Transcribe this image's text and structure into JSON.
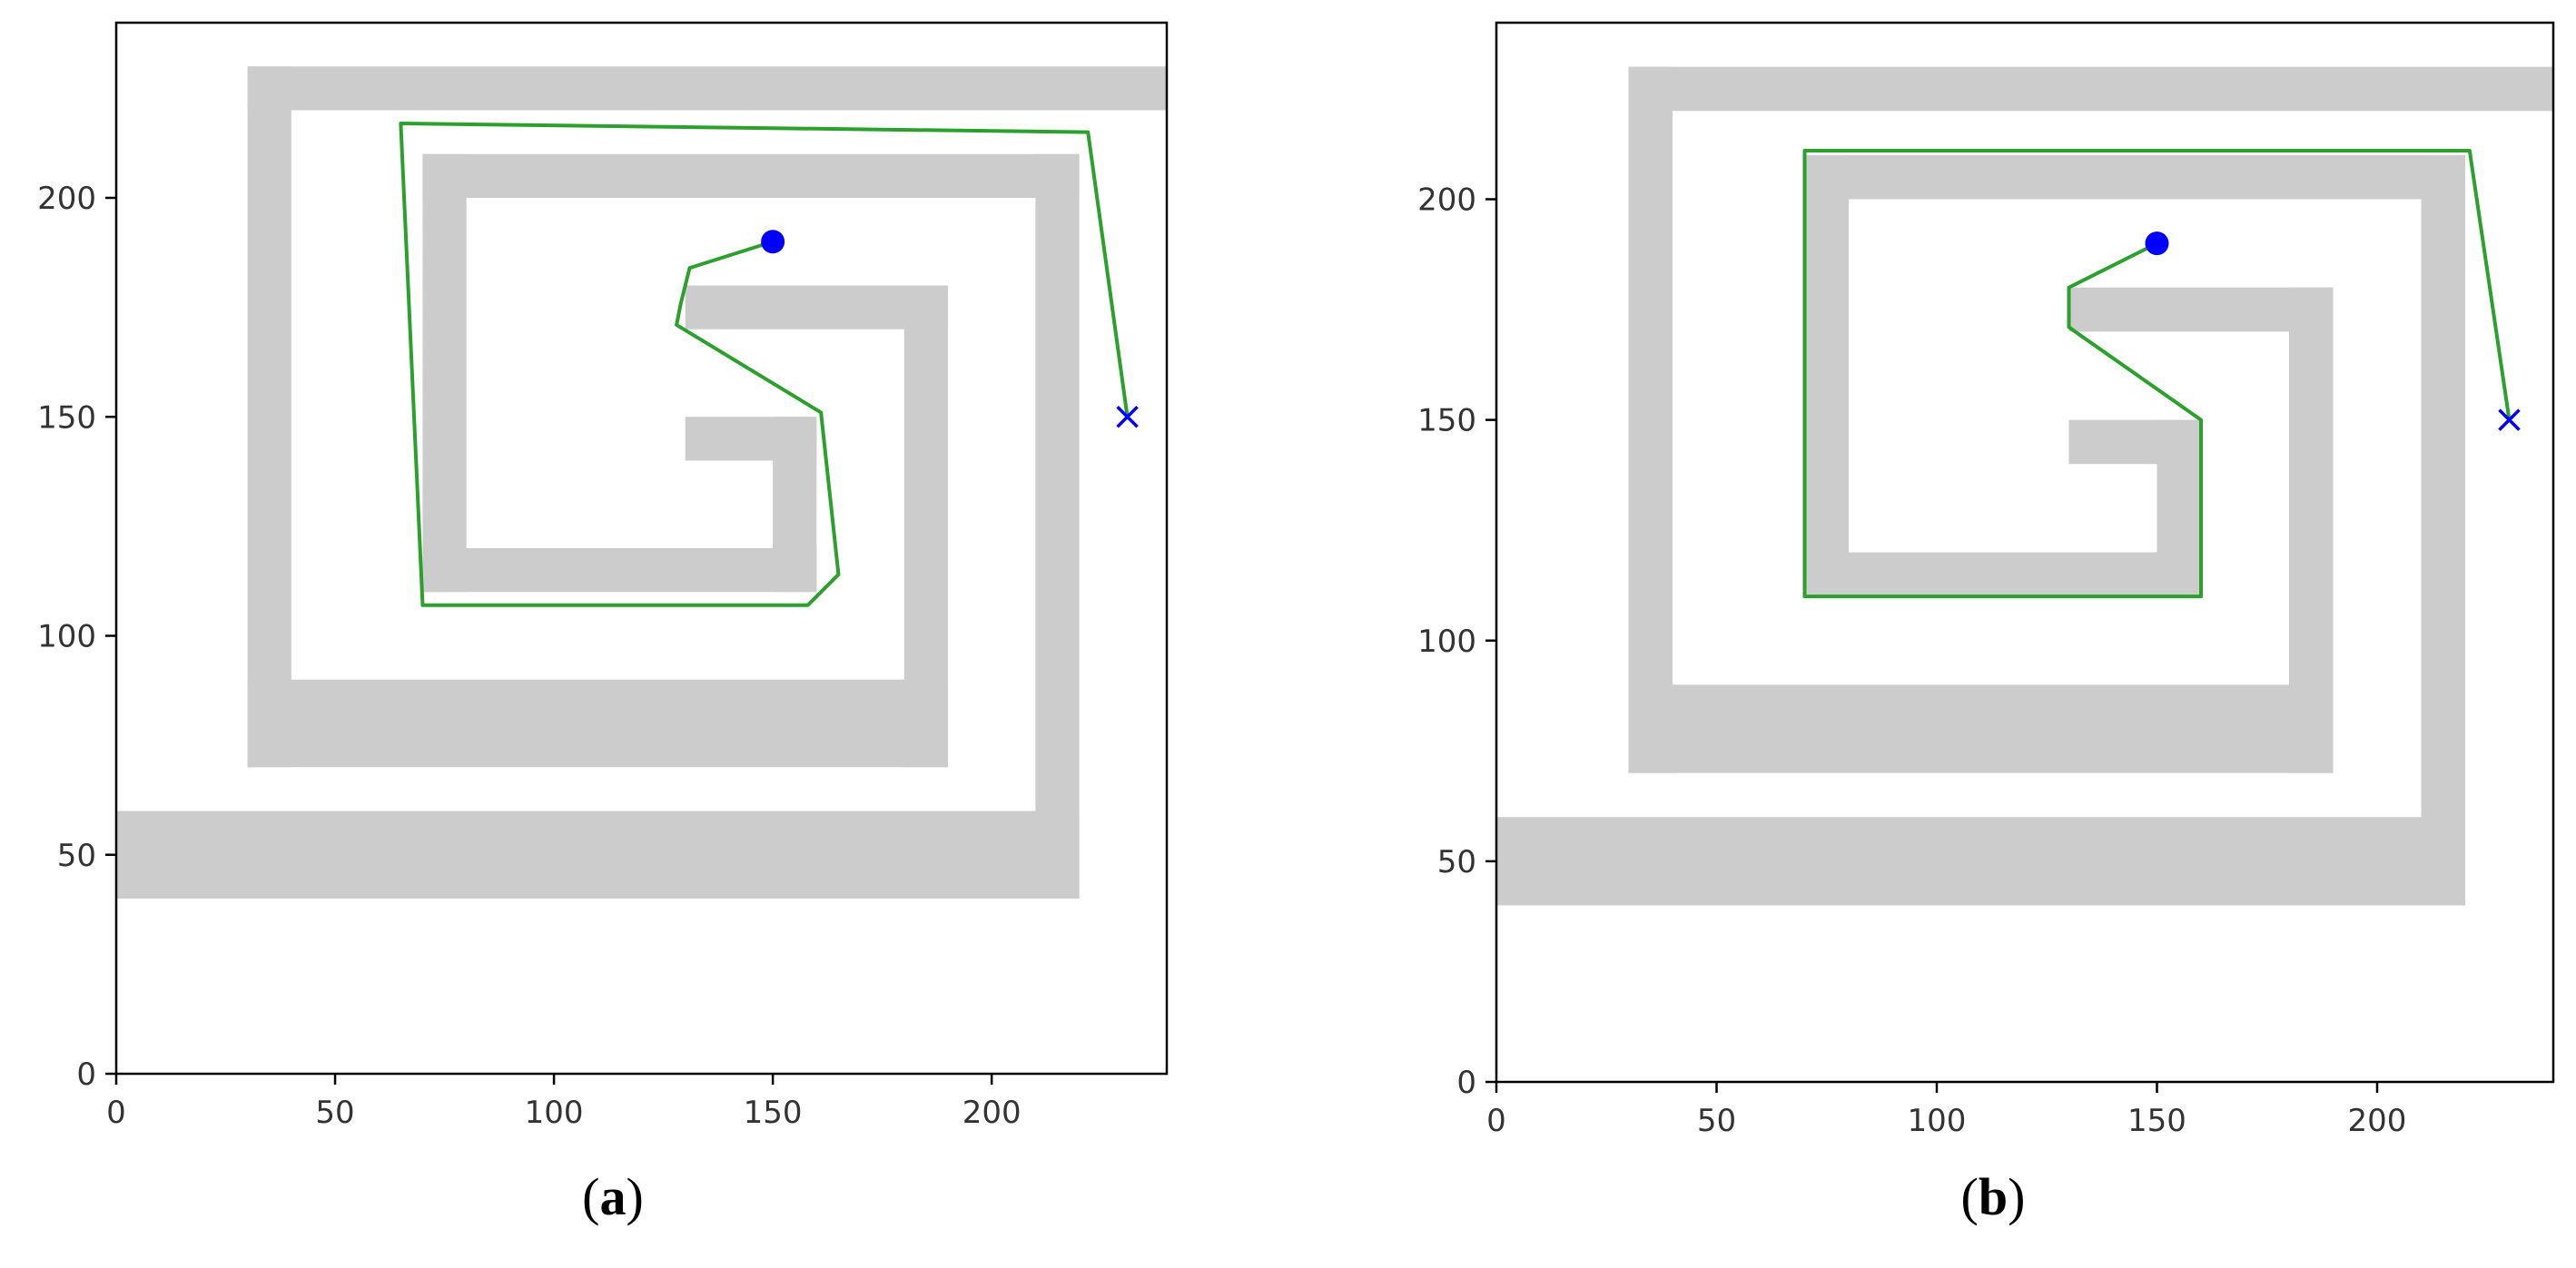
{
  "chart_data": [
    {
      "type": "scatter",
      "subplot_label": "a",
      "xlim": [
        0,
        240
      ],
      "ylim": [
        0,
        240
      ],
      "xticks": [
        0,
        50,
        100,
        150,
        200
      ],
      "yticks": [
        0,
        50,
        100,
        150,
        200
      ],
      "grid": false,
      "obstacle_color": "#cccccc",
      "path_color": "#2ca02c",
      "marker_color": "#0000ff",
      "obstacles": [
        {
          "x0": 0,
          "y0": 40,
          "x1": 220,
          "y1": 60
        },
        {
          "x0": 210,
          "y0": 40,
          "x1": 220,
          "y1": 210
        },
        {
          "x0": 70,
          "y0": 200,
          "x1": 220,
          "y1": 210
        },
        {
          "x0": 70,
          "y0": 110,
          "x1": 80,
          "y1": 210
        },
        {
          "x0": 70,
          "y0": 110,
          "x1": 160,
          "y1": 120
        },
        {
          "x0": 150,
          "y0": 110,
          "x1": 160,
          "y1": 150
        },
        {
          "x0": 130,
          "y0": 140,
          "x1": 160,
          "y1": 150
        },
        {
          "x0": 30,
          "y0": 70,
          "x1": 190,
          "y1": 90
        },
        {
          "x0": 30,
          "y0": 70,
          "x1": 40,
          "y1": 230
        },
        {
          "x0": 30,
          "y0": 220,
          "x1": 240,
          "y1": 230
        },
        {
          "x0": 180,
          "y0": 70,
          "x1": 190,
          "y1": 180
        },
        {
          "x0": 130,
          "y0": 170,
          "x1": 190,
          "y1": 180
        }
      ],
      "path": [
        [
          150,
          190
        ],
        [
          131,
          184
        ],
        [
          129,
          176
        ],
        [
          128,
          171
        ],
        [
          161,
          151
        ],
        [
          165,
          114
        ],
        [
          158,
          107
        ],
        [
          70,
          107
        ],
        [
          65,
          217
        ],
        [
          222,
          215
        ],
        [
          231,
          150
        ]
      ],
      "start": [
        150,
        190
      ],
      "goal": [
        231,
        150
      ]
    },
    {
      "type": "scatter",
      "subplot_label": "b",
      "xlim": [
        0,
        240
      ],
      "ylim": [
        0,
        240
      ],
      "xticks": [
        0,
        50,
        100,
        150,
        200
      ],
      "yticks": [
        0,
        50,
        100,
        150,
        200
      ],
      "grid": false,
      "obstacle_color": "#cccccc",
      "path_color": "#2ca02c",
      "marker_color": "#0000ff",
      "obstacles": [
        {
          "x0": 0,
          "y0": 40,
          "x1": 220,
          "y1": 60
        },
        {
          "x0": 210,
          "y0": 40,
          "x1": 220,
          "y1": 210
        },
        {
          "x0": 70,
          "y0": 200,
          "x1": 220,
          "y1": 210
        },
        {
          "x0": 70,
          "y0": 110,
          "x1": 80,
          "y1": 210
        },
        {
          "x0": 70,
          "y0": 110,
          "x1": 160,
          "y1": 120
        },
        {
          "x0": 150,
          "y0": 110,
          "x1": 160,
          "y1": 150
        },
        {
          "x0": 130,
          "y0": 140,
          "x1": 160,
          "y1": 150
        },
        {
          "x0": 30,
          "y0": 70,
          "x1": 190,
          "y1": 90
        },
        {
          "x0": 30,
          "y0": 70,
          "x1": 40,
          "y1": 230
        },
        {
          "x0": 30,
          "y0": 220,
          "x1": 240,
          "y1": 230
        },
        {
          "x0": 180,
          "y0": 70,
          "x1": 190,
          "y1": 180
        },
        {
          "x0": 130,
          "y0": 170,
          "x1": 190,
          "y1": 180
        }
      ],
      "path": [
        [
          150,
          190
        ],
        [
          130,
          180
        ],
        [
          130,
          171
        ],
        [
          160,
          150
        ],
        [
          160,
          110
        ],
        [
          70,
          110
        ],
        [
          70,
          211
        ],
        [
          221,
          211
        ],
        [
          230,
          150
        ]
      ],
      "start": [
        150,
        190
      ],
      "goal": [
        230,
        150
      ]
    }
  ],
  "captions": {
    "a": {
      "open": "(",
      "label": "a",
      "close": ")"
    },
    "b": {
      "open": "(",
      "label": "b",
      "close": ")"
    }
  }
}
